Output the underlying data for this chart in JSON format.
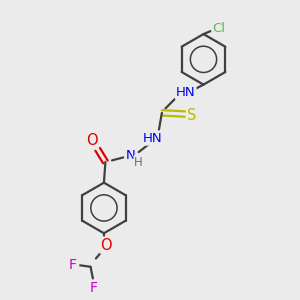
{
  "bg_color": "#ebebeb",
  "atom_colors": {
    "C": "#404040",
    "H": "#607080",
    "N": "#0000ee",
    "O": "#dd0000",
    "S": "#bbbb00",
    "F": "#cc00cc",
    "Cl": "#55bb55"
  },
  "bond_color": "#404040",
  "bond_width": 1.6
}
